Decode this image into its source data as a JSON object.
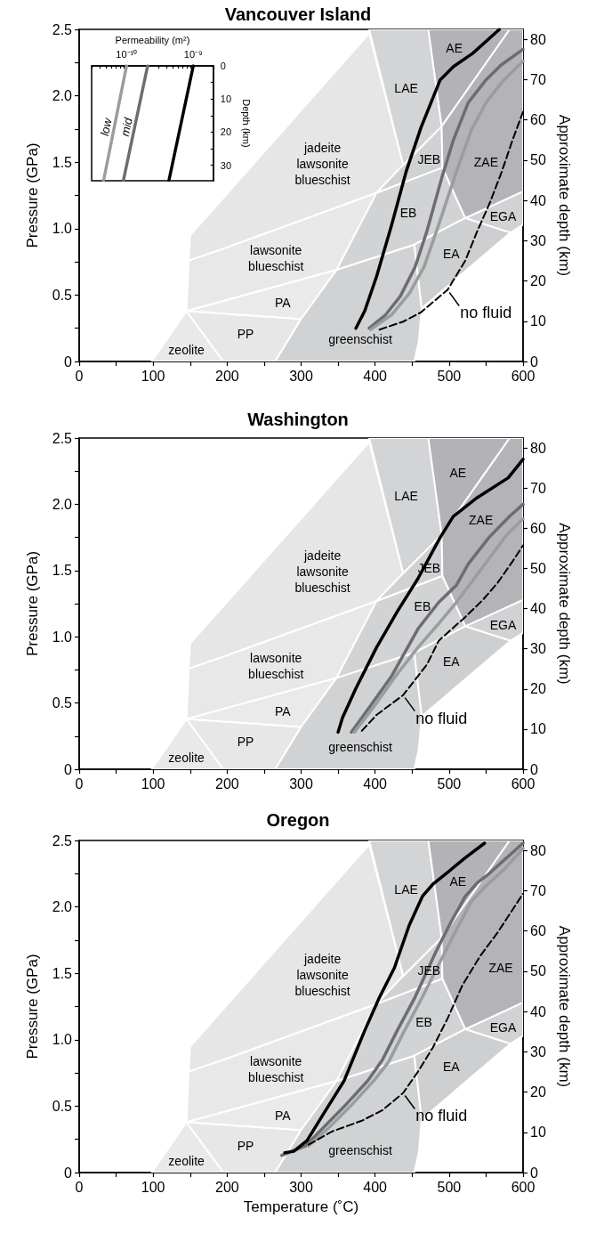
{
  "chart_data": [
    {
      "type": "line",
      "title": "Vancouver Island",
      "ylabel": "Pressure (GPa)",
      "y2label": "Approximate depth (km)",
      "xlim": [
        0,
        600
      ],
      "xticks": [
        0,
        {
          "value": 50,
          "label": null
        },
        100,
        {
          "value": 150,
          "label": null
        },
        200,
        {
          "value": 250,
          "label": null
        },
        300,
        {
          "value": 350,
          "label": null
        },
        400,
        {
          "value": 450,
          "label": null
        },
        500,
        {
          "value": 550,
          "label": null
        },
        600
      ],
      "ylim": [
        0,
        2.5
      ],
      "yticks": [
        0,
        {
          "value": 0.25,
          "label": null
        },
        0.5,
        {
          "value": 0.75,
          "label": null
        },
        {
          "value": 1,
          "label": "1.0"
        },
        {
          "value": 1.25,
          "label": null
        },
        1.5,
        {
          "value": 1.75,
          "label": null
        },
        {
          "value": 2,
          "label": "2.0"
        },
        {
          "value": 2.25,
          "label": null
        },
        2.5
      ],
      "y2lim": [
        0,
        82.5
      ],
      "y2ticks": [
        0,
        10,
        20,
        30,
        40,
        50,
        60,
        70,
        80
      ],
      "grid": false,
      "marker": "none",
      "series": [
        {
          "type": "area",
          "color": "#e9e9e9",
          "x": [
            98,
            145,
            195
          ],
          "values": [
            0,
            0.38,
            0
          ]
        },
        {
          "type": "area",
          "color": "#e7e7e7",
          "x": [
            145,
            195,
            265,
            300
          ],
          "values": [
            0.38,
            0,
            0,
            0.32
          ]
        },
        {
          "type": "area",
          "color": "#eaeaea",
          "x": [
            145,
            300,
            348
          ],
          "values": [
            0.38,
            0.32,
            0.69
          ]
        },
        {
          "type": "area",
          "color": "#e8e8e8",
          "x": [
            145,
            348,
            402,
            200,
            148
          ],
          "values": [
            0.38,
            0.69,
            1.27,
            0.86,
            0.76
          ]
        },
        {
          "type": "area",
          "color": "#e6e6e6",
          "x": [
            148,
            200,
            402,
            438,
            392,
            150
          ],
          "values": [
            0.76,
            0.86,
            1.27,
            1.48,
            2.47,
            0.95
          ]
        },
        {
          "type": "area",
          "color": "#d0d2d4",
          "x": [
            265,
            300,
            348,
            453,
            463,
            459,
            453
          ],
          "values": [
            0,
            0.32,
            0.69,
            0.88,
            0.4,
            0.15,
            0
          ]
        },
        {
          "type": "area",
          "color": "#d1d3d5",
          "x": [
            348,
            402,
            491,
            522,
            453
          ],
          "values": [
            0.69,
            1.27,
            1.46,
            1.08,
            0.88
          ]
        },
        {
          "type": "area",
          "color": "#cfd1d3",
          "x": [
            402,
            438,
            490,
            491
          ],
          "values": [
            1.27,
            1.48,
            1.77,
            1.46
          ]
        },
        {
          "type": "area",
          "color": "#d2d4d6",
          "x": [
            392,
            472,
            490,
            438
          ],
          "values": [
            2.5,
            2.5,
            1.77,
            1.48
          ]
        },
        {
          "type": "area",
          "color": "#cecfd1",
          "x": [
            453,
            522,
            583,
            463
          ],
          "values": [
            0.88,
            1.08,
            0.97,
            0.4
          ]
        },
        {
          "type": "area",
          "color": "#d1d2d4",
          "x": [
            522,
            600,
            600,
            583
          ],
          "values": [
            1.08,
            1.28,
            1.03,
            0.97
          ]
        },
        {
          "type": "area",
          "color": "#b3b2b7",
          "x": [
            472,
            582,
            490
          ],
          "values": [
            2.5,
            2.5,
            1.77
          ]
        },
        {
          "type": "area",
          "color": "#b4b3b8",
          "x": [
            490,
            582,
            600,
            600,
            522,
            491
          ],
          "values": [
            1.77,
            2.5,
            2.5,
            1.28,
            1.08,
            1.46
          ]
        },
        {
          "color": "#000000",
          "x": [
            374,
            386,
            402,
            422,
            442,
            462,
            488,
            506,
            532,
            568
          ],
          "values": [
            0.25,
            0.38,
            0.64,
            1.02,
            1.43,
            1.76,
            2.12,
            2.22,
            2.32,
            2.5
          ]
        },
        {
          "color": "#6d6d70",
          "x": [
            392,
            414,
            434,
            454,
            470,
            490,
            506,
            526,
            550,
            570,
            600
          ],
          "values": [
            0.25,
            0.35,
            0.49,
            0.71,
            0.98,
            1.38,
            1.67,
            1.95,
            2.12,
            2.23,
            2.35
          ]
        },
        {
          "color": "#9a9d9d",
          "x": [
            394,
            422,
            446,
            466,
            486,
            510,
            530,
            550,
            574,
            600
          ],
          "values": [
            0.24,
            0.35,
            0.51,
            0.71,
            1.03,
            1.43,
            1.74,
            1.95,
            2.12,
            2.26
          ]
        },
        {
          "color": "#000000",
          "line_style": "dashed",
          "x": [
            406,
            438,
            462,
            498,
            522,
            538,
            554,
            570,
            586,
            600
          ],
          "values": [
            0.24,
            0.3,
            0.37,
            0.54,
            0.76,
            0.98,
            1.18,
            1.41,
            1.67,
            1.88
          ]
        }
      ],
      "annotations": [
        "jadeite\nlawsonite\nblueschist",
        "lawsonite\nblueschist",
        "PA",
        "PP",
        "zeolite",
        "greenschist",
        "EB",
        "JEB",
        "LAE",
        "AE",
        "ZAE",
        "EGA",
        "EA",
        "no fluid"
      ]
    },
    {
      "type": "line",
      "xlabel": "Permeability (m²)",
      "ylabel": "Depth (km)",
      "log": "x",
      "xlim": [
        3e-11,
        2e-09
      ],
      "xticks": [
        {
          "value": 3e-11,
          "label": null
        },
        {
          "value": 4e-11,
          "label": null
        },
        {
          "value": 5e-11,
          "label": null
        },
        {
          "value": 6e-11,
          "label": null
        },
        {
          "value": 7e-11,
          "label": null
        },
        {
          "value": 8e-11,
          "label": null
        },
        {
          "value": 9e-11,
          "label": null
        },
        {
          "value": 1e-10,
          "label": "10⁻¹⁰"
        },
        {
          "value": 2e-10,
          "label": null
        },
        {
          "value": 3e-10,
          "label": null
        },
        {
          "value": 4e-10,
          "label": null
        },
        {
          "value": 5e-10,
          "label": null
        },
        {
          "value": 6e-10,
          "label": null
        },
        {
          "value": 7e-10,
          "label": null
        },
        {
          "value": 8e-10,
          "label": null
        },
        {
          "value": 9e-10,
          "label": null
        },
        {
          "value": 1e-09,
          "label": "10⁻⁹"
        },
        {
          "value": 2e-09,
          "label": null
        }
      ],
      "ylim": [
        34.7,
        0
      ],
      "yticks": [
        0,
        {
          "value": 5,
          "label": null
        },
        10,
        {
          "value": 15,
          "label": null
        },
        20,
        {
          "value": 25,
          "label": null
        },
        30
      ],
      "grid": false,
      "marker": "none",
      "series": [
        {
          "name": "low",
          "color": "#9a9d9d",
          "x": [
            4.55e-11,
            1e-10
          ],
          "values": [
            34.5,
            0
          ]
        },
        {
          "name": "mid",
          "color": "#6d6d70",
          "x": [
            9e-11,
            2.07e-10
          ],
          "values": [
            34.5,
            0
          ]
        },
        {
          "color": "#000000",
          "x": [
            4.33e-10,
            1e-09
          ],
          "values": [
            34.5,
            0
          ]
        }
      ]
    },
    {
      "type": "line",
      "title": "Washington",
      "ylabel": "Pressure (GPa)",
      "y2label": "Approximate depth (km)",
      "xlim": [
        0,
        600
      ],
      "xticks": [
        0,
        {
          "value": 50,
          "label": null
        },
        100,
        {
          "value": 150,
          "label": null
        },
        200,
        {
          "value": 250,
          "label": null
        },
        300,
        {
          "value": 350,
          "label": null
        },
        400,
        {
          "value": 450,
          "label": null
        },
        500,
        {
          "value": 550,
          "label": null
        },
        600
      ],
      "ylim": [
        0,
        2.5
      ],
      "yticks": [
        0,
        {
          "value": 0.25,
          "label": null
        },
        0.5,
        {
          "value": 0.75,
          "label": null
        },
        {
          "value": 1,
          "label": "1.0"
        },
        {
          "value": 1.25,
          "label": null
        },
        1.5,
        {
          "value": 1.75,
          "label": null
        },
        {
          "value": 2,
          "label": "2.0"
        },
        {
          "value": 2.25,
          "label": null
        },
        2.5
      ],
      "y2lim": [
        0,
        82.5
      ],
      "y2ticks": [
        0,
        10,
        20,
        30,
        40,
        50,
        60,
        70,
        80
      ],
      "grid": false,
      "marker": "none",
      "series": [
        {
          "type": "area",
          "color": "#e9e9e9",
          "x": [
            98,
            145,
            195
          ],
          "values": [
            0,
            0.38,
            0
          ]
        },
        {
          "type": "area",
          "color": "#e7e7e7",
          "x": [
            145,
            195,
            265,
            300
          ],
          "values": [
            0.38,
            0,
            0,
            0.32
          ]
        },
        {
          "type": "area",
          "color": "#eaeaea",
          "x": [
            145,
            300,
            348
          ],
          "values": [
            0.38,
            0.32,
            0.69
          ]
        },
        {
          "type": "area",
          "color": "#e8e8e8",
          "x": [
            145,
            348,
            402,
            200,
            148
          ],
          "values": [
            0.38,
            0.69,
            1.27,
            0.86,
            0.76
          ]
        },
        {
          "type": "area",
          "color": "#e6e6e6",
          "x": [
            148,
            200,
            402,
            438,
            392,
            150
          ],
          "values": [
            0.76,
            0.86,
            1.27,
            1.48,
            2.47,
            0.95
          ]
        },
        {
          "type": "area",
          "color": "#d0d2d4",
          "x": [
            265,
            300,
            348,
            453,
            463,
            459,
            453
          ],
          "values": [
            0,
            0.32,
            0.69,
            0.88,
            0.4,
            0.15,
            0
          ]
        },
        {
          "type": "area",
          "color": "#d1d3d5",
          "x": [
            348,
            402,
            491,
            522,
            453
          ],
          "values": [
            0.69,
            1.27,
            1.46,
            1.08,
            0.88
          ]
        },
        {
          "type": "area",
          "color": "#cfd1d3",
          "x": [
            402,
            438,
            490,
            491
          ],
          "values": [
            1.27,
            1.48,
            1.77,
            1.46
          ]
        },
        {
          "type": "area",
          "color": "#d2d4d6",
          "x": [
            392,
            472,
            490,
            438
          ],
          "values": [
            2.5,
            2.5,
            1.77,
            1.48
          ]
        },
        {
          "type": "area",
          "color": "#cecfd1",
          "x": [
            453,
            522,
            583,
            463
          ],
          "values": [
            0.88,
            1.08,
            0.97,
            0.4
          ]
        },
        {
          "type": "area",
          "color": "#d1d2d4",
          "x": [
            522,
            600,
            600,
            583
          ],
          "values": [
            1.08,
            1.28,
            1.03,
            0.97
          ]
        },
        {
          "type": "area",
          "color": "#b3b2b7",
          "x": [
            472,
            582,
            490
          ],
          "values": [
            2.5,
            2.5,
            1.77
          ]
        },
        {
          "type": "area",
          "color": "#b4b3b8",
          "x": [
            490,
            582,
            600,
            600,
            522,
            491
          ],
          "values": [
            1.77,
            2.5,
            2.5,
            1.28,
            1.08,
            1.46
          ]
        },
        {
          "color": "#000000",
          "x": [
            350,
            356,
            374,
            402,
            430,
            458,
            488,
            506,
            538,
            580,
            600
          ],
          "values": [
            0.28,
            0.39,
            0.61,
            0.92,
            1.19,
            1.44,
            1.75,
            1.91,
            2.05,
            2.2,
            2.34
          ]
        },
        {
          "color": "#6d6d70",
          "x": [
            368,
            390,
            422,
            458,
            486,
            510,
            526,
            554,
            582,
            600
          ],
          "values": [
            0.28,
            0.45,
            0.7,
            1.06,
            1.26,
            1.39,
            1.55,
            1.75,
            1.91,
            2
          ]
        },
        {
          "color": "#9a9d9d",
          "x": [
            372,
            402,
            430,
            458,
            486,
            510,
            534,
            558,
            578,
            600
          ],
          "values": [
            0.28,
            0.5,
            0.72,
            0.92,
            1.1,
            1.26,
            1.44,
            1.62,
            1.77,
            1.89
          ]
        },
        {
          "color": "#000000",
          "line_style": "dashed",
          "x": [
            382,
            402,
            438,
            470,
            486,
            506,
            522,
            546,
            566,
            586,
            600
          ],
          "values": [
            0.29,
            0.41,
            0.56,
            0.79,
            0.97,
            1.07,
            1.15,
            1.28,
            1.41,
            1.57,
            1.69
          ]
        }
      ],
      "annotations": [
        "jadeite\nlawsonite\nblueschist",
        "lawsonite\nblueschist",
        "PA",
        "PP",
        "zeolite",
        "greenschist",
        "EB",
        "JEB",
        "LAE",
        "AE",
        "ZAE",
        "EGA",
        "EA",
        "no fluid"
      ]
    },
    {
      "type": "line",
      "title": "Oregon",
      "xlabel": "Temperature (˚C)",
      "ylabel": "Pressure (GPa)",
      "y2label": "Approximate depth (km)",
      "xlim": [
        0,
        600
      ],
      "xticks": [
        0,
        {
          "value": 50,
          "label": null
        },
        100,
        {
          "value": 150,
          "label": null
        },
        200,
        {
          "value": 250,
          "label": null
        },
        300,
        {
          "value": 350,
          "label": null
        },
        400,
        {
          "value": 450,
          "label": null
        },
        500,
        {
          "value": 550,
          "label": null
        },
        600
      ],
      "ylim": [
        0,
        2.5
      ],
      "yticks": [
        0,
        {
          "value": 0.25,
          "label": null
        },
        0.5,
        {
          "value": 0.75,
          "label": null
        },
        {
          "value": 1,
          "label": "1.0"
        },
        {
          "value": 1.25,
          "label": null
        },
        1.5,
        {
          "value": 1.75,
          "label": null
        },
        {
          "value": 2,
          "label": "2.0"
        },
        {
          "value": 2.25,
          "label": null
        },
        2.5
      ],
      "y2lim": [
        0,
        82.5
      ],
      "y2ticks": [
        0,
        10,
        20,
        30,
        40,
        50,
        60,
        70,
        80
      ],
      "grid": false,
      "marker": "none",
      "series": [
        {
          "type": "area",
          "color": "#e9e9e9",
          "x": [
            98,
            145,
            195
          ],
          "values": [
            0,
            0.38,
            0
          ]
        },
        {
          "type": "area",
          "color": "#e7e7e7",
          "x": [
            145,
            195,
            265,
            300
          ],
          "values": [
            0.38,
            0,
            0,
            0.32
          ]
        },
        {
          "type": "area",
          "color": "#eaeaea",
          "x": [
            145,
            300,
            348
          ],
          "values": [
            0.38,
            0.32,
            0.69
          ]
        },
        {
          "type": "area",
          "color": "#e8e8e8",
          "x": [
            145,
            348,
            402,
            200,
            148
          ],
          "values": [
            0.38,
            0.69,
            1.27,
            0.86,
            0.76
          ]
        },
        {
          "type": "area",
          "color": "#e6e6e6",
          "x": [
            148,
            200,
            402,
            438,
            392,
            150
          ],
          "values": [
            0.76,
            0.86,
            1.27,
            1.48,
            2.47,
            0.95
          ]
        },
        {
          "type": "area",
          "color": "#d0d2d4",
          "x": [
            265,
            300,
            348,
            453,
            463,
            459,
            453
          ],
          "values": [
            0,
            0.32,
            0.69,
            0.88,
            0.4,
            0.15,
            0
          ]
        },
        {
          "type": "area",
          "color": "#d1d3d5",
          "x": [
            348,
            402,
            491,
            522,
            453
          ],
          "values": [
            0.69,
            1.27,
            1.46,
            1.08,
            0.88
          ]
        },
        {
          "type": "area",
          "color": "#cfd1d3",
          "x": [
            402,
            438,
            490,
            491
          ],
          "values": [
            1.27,
            1.48,
            1.77,
            1.46
          ]
        },
        {
          "type": "area",
          "color": "#d2d4d6",
          "x": [
            392,
            472,
            490,
            438
          ],
          "values": [
            2.5,
            2.5,
            1.77,
            1.48
          ]
        },
        {
          "type": "area",
          "color": "#cecfd1",
          "x": [
            453,
            522,
            583,
            463
          ],
          "values": [
            0.88,
            1.08,
            0.97,
            0.4
          ]
        },
        {
          "type": "area",
          "color": "#d1d2d4",
          "x": [
            522,
            600,
            600,
            583
          ],
          "values": [
            1.08,
            1.28,
            1.03,
            0.97
          ]
        },
        {
          "type": "area",
          "color": "#b3b2b7",
          "x": [
            472,
            582,
            490
          ],
          "values": [
            2.5,
            2.5,
            1.77
          ]
        },
        {
          "type": "area",
          "color": "#b4b3b8",
          "x": [
            490,
            582,
            600,
            600,
            522,
            491
          ],
          "values": [
            1.77,
            2.5,
            2.5,
            1.28,
            1.08,
            1.46
          ]
        },
        {
          "color": "#6d6d70",
          "x": [
            274,
            306,
            334,
            362,
            390,
            410,
            430,
            454,
            482,
            502,
            522,
            538,
            554,
            578,
            600
          ],
          "values": [
            0.13,
            0.2,
            0.36,
            0.52,
            0.69,
            0.85,
            1.07,
            1.32,
            1.66,
            1.88,
            2.08,
            2.18,
            2.25,
            2.37,
            2.48
          ]
        },
        {
          "color": "#9a9d9d",
          "x": [
            310,
            338,
            370,
            398,
            418,
            438,
            462,
            490,
            510,
            530,
            550,
            574,
            600
          ],
          "values": [
            0.2,
            0.34,
            0.52,
            0.69,
            0.83,
            1.05,
            1.3,
            1.61,
            1.83,
            2.04,
            2.16,
            2.28,
            2.44
          ]
        },
        {
          "color": "#000000",
          "line_style": "dashed",
          "x": [
            310,
            342,
            382,
            410,
            438,
            458,
            478,
            498,
            518,
            542,
            566,
            600
          ],
          "values": [
            0.21,
            0.31,
            0.39,
            0.47,
            0.6,
            0.76,
            0.94,
            1.16,
            1.41,
            1.63,
            1.81,
            2.1
          ]
        },
        {
          "color": "#000000",
          "x": [
            278,
            290,
            308,
            330,
            358,
            386,
            406,
            426,
            446,
            464,
            478,
            498,
            522,
            548
          ],
          "values": [
            0.15,
            0.16,
            0.24,
            0.44,
            0.69,
            1.07,
            1.32,
            1.54,
            1.86,
            2.08,
            2.17,
            2.26,
            2.37,
            2.48
          ]
        }
      ],
      "annotations": [
        "jadeite\nlawsonite\nblueschist",
        "lawsonite\nblueschist",
        "PA",
        "PP",
        "zeolite",
        "greenschist",
        "EB",
        "JEB",
        "LAE",
        "AE",
        "ZAE",
        "EGA",
        "EA",
        "no fluid"
      ]
    }
  ]
}
